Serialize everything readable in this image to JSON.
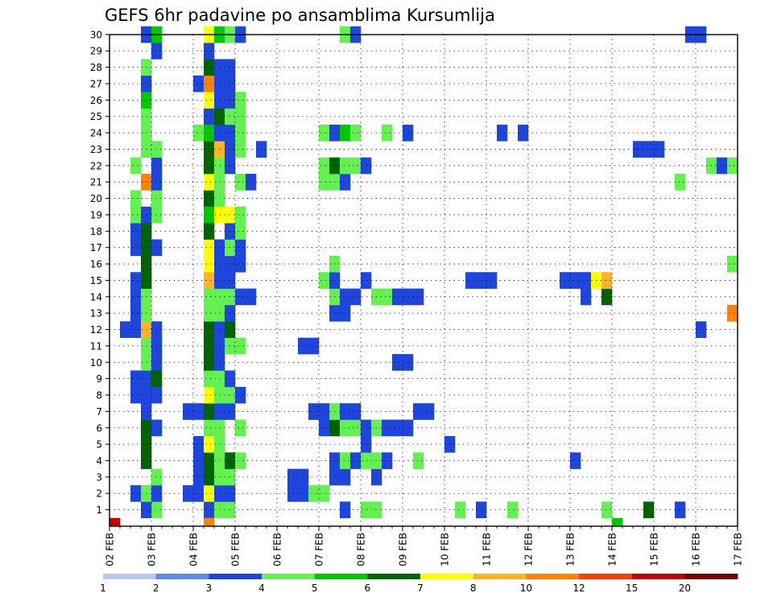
{
  "chart_data": {
    "type": "heatmap",
    "title": "GEFS 6hr padavine po ansamblima Kursumlija",
    "x_tick_labels": [
      "02 FEB",
      "03 FEB",
      "04 FEB",
      "05 FEB",
      "06 FEB",
      "07 FEB",
      "08 FEB",
      "09 FEB",
      "10 FEB",
      "11 FEB",
      "12 FEB",
      "13 FEB",
      "14 FEB",
      "15 FEB",
      "16 FEB",
      "17 FEB"
    ],
    "y_tick_labels": [
      "1",
      "2",
      "3",
      "4",
      "5",
      "6",
      "7",
      "8",
      "9",
      "10",
      "11",
      "12",
      "13",
      "14",
      "15",
      "16",
      "17",
      "18",
      "19",
      "20",
      "21",
      "22",
      "23",
      "24",
      "25",
      "26",
      "27",
      "28",
      "29",
      "30"
    ],
    "xlim_steps": [
      0,
      60
    ],
    "ylim_members": [
      0,
      30
    ],
    "grid": true,
    "legend": {
      "placement": "bottom",
      "labels": [
        "1",
        "2",
        "3",
        "4",
        "5",
        "6",
        "7",
        "8",
        "10",
        "12",
        "15",
        "20"
      ],
      "colors": [
        "#b4c8f0",
        "#5a8cf0",
        "#1e46dc",
        "#64f050",
        "#00c800",
        "#006400",
        "#ffff00",
        "#ffb428",
        "#ff8200",
        "#ff3c00",
        "#c80000",
        "#780000"
      ]
    },
    "cells": [
      [
        3,
        0,
        2
      ],
      [
        4,
        0,
        3
      ],
      [
        9,
        0,
        2
      ],
      [
        10,
        0,
        3
      ],
      [
        11,
        0,
        3
      ],
      [
        22,
        0,
        2
      ],
      [
        24,
        0,
        3
      ],
      [
        25,
        0,
        3
      ],
      [
        33,
        0,
        3
      ],
      [
        35,
        0,
        2
      ],
      [
        38,
        0,
        3
      ],
      [
        47,
        0,
        3
      ],
      [
        51,
        0,
        5
      ],
      [
        54,
        0,
        2
      ],
      [
        2,
        1,
        2
      ],
      [
        3,
        1,
        3
      ],
      [
        4,
        1,
        2
      ],
      [
        7,
        1,
        2
      ],
      [
        8,
        1,
        2
      ],
      [
        9,
        1,
        6
      ],
      [
        10,
        1,
        2
      ],
      [
        11,
        1,
        2
      ],
      [
        17,
        1,
        2
      ],
      [
        18,
        1,
        2
      ],
      [
        19,
        1,
        3
      ],
      [
        20,
        1,
        3
      ],
      [
        4,
        2,
        3
      ],
      [
        8,
        2,
        2
      ],
      [
        9,
        2,
        5
      ],
      [
        10,
        2,
        3
      ],
      [
        11,
        2,
        3
      ],
      [
        17,
        2,
        2
      ],
      [
        18,
        2,
        2
      ],
      [
        21,
        2,
        2
      ],
      [
        22,
        2,
        2
      ],
      [
        25,
        2,
        2
      ],
      [
        3,
        3,
        5
      ],
      [
        8,
        3,
        2
      ],
      [
        9,
        3,
        5
      ],
      [
        10,
        3,
        3
      ],
      [
        11,
        3,
        5
      ],
      [
        12,
        3,
        3
      ],
      [
        21,
        3,
        2
      ],
      [
        22,
        3,
        3
      ],
      [
        23,
        3,
        2
      ],
      [
        24,
        3,
        3
      ],
      [
        25,
        3,
        3
      ],
      [
        26,
        3,
        2
      ],
      [
        29,
        3,
        3
      ],
      [
        44,
        3,
        2
      ],
      [
        3,
        4,
        5
      ],
      [
        8,
        4,
        2
      ],
      [
        9,
        4,
        6
      ],
      [
        10,
        4,
        3
      ],
      [
        24,
        4,
        2
      ],
      [
        32,
        4,
        2
      ],
      [
        3,
        5,
        5
      ],
      [
        4,
        5,
        2
      ],
      [
        9,
        5,
        3
      ],
      [
        10,
        5,
        3
      ],
      [
        12,
        5,
        3
      ],
      [
        20,
        5,
        2
      ],
      [
        21,
        5,
        5
      ],
      [
        22,
        5,
        3
      ],
      [
        23,
        5,
        3
      ],
      [
        24,
        5,
        2
      ],
      [
        25,
        5,
        3
      ],
      [
        26,
        5,
        2
      ],
      [
        27,
        5,
        2
      ],
      [
        28,
        5,
        2
      ],
      [
        3,
        6,
        2
      ],
      [
        7,
        6,
        2
      ],
      [
        8,
        6,
        2
      ],
      [
        9,
        6,
        5
      ],
      [
        10,
        6,
        2
      ],
      [
        11,
        6,
        2
      ],
      [
        19,
        6,
        2
      ],
      [
        20,
        6,
        2
      ],
      [
        21,
        6,
        3
      ],
      [
        22,
        6,
        2
      ],
      [
        23,
        6,
        2
      ],
      [
        29,
        6,
        2
      ],
      [
        30,
        6,
        2
      ],
      [
        2,
        7,
        2
      ],
      [
        3,
        7,
        2
      ],
      [
        4,
        7,
        2
      ],
      [
        9,
        7,
        6
      ],
      [
        10,
        7,
        3
      ],
      [
        11,
        7,
        3
      ],
      [
        12,
        7,
        2
      ],
      [
        2,
        8,
        2
      ],
      [
        3,
        8,
        2
      ],
      [
        4,
        8,
        5
      ],
      [
        9,
        8,
        3
      ],
      [
        10,
        8,
        3
      ],
      [
        11,
        8,
        2
      ],
      [
        3,
        9,
        3
      ],
      [
        4,
        9,
        2
      ],
      [
        9,
        9,
        5
      ],
      [
        10,
        9,
        2
      ],
      [
        27,
        9,
        2
      ],
      [
        28,
        9,
        2
      ],
      [
        3,
        10,
        3
      ],
      [
        4,
        10,
        2
      ],
      [
        9,
        10,
        5
      ],
      [
        10,
        10,
        2
      ],
      [
        11,
        10,
        3
      ],
      [
        12,
        10,
        3
      ],
      [
        18,
        10,
        2
      ],
      [
        19,
        10,
        2
      ],
      [
        1,
        11,
        2
      ],
      [
        2,
        11,
        2
      ],
      [
        3,
        11,
        7
      ],
      [
        4,
        11,
        2
      ],
      [
        9,
        11,
        5
      ],
      [
        10,
        11,
        2
      ],
      [
        11,
        11,
        5
      ],
      [
        56,
        11,
        2
      ],
      [
        2,
        12,
        2
      ],
      [
        3,
        12,
        3
      ],
      [
        9,
        12,
        3
      ],
      [
        10,
        12,
        3
      ],
      [
        11,
        12,
        2
      ],
      [
        21,
        12,
        2
      ],
      [
        22,
        12,
        2
      ],
      [
        59,
        12,
        8
      ],
      [
        60,
        12,
        2
      ],
      [
        2,
        13,
        2
      ],
      [
        3,
        13,
        3
      ],
      [
        9,
        13,
        3
      ],
      [
        10,
        13,
        3
      ],
      [
        11,
        13,
        3
      ],
      [
        12,
        13,
        2
      ],
      [
        13,
        13,
        2
      ],
      [
        21,
        13,
        3
      ],
      [
        22,
        13,
        2
      ],
      [
        23,
        13,
        2
      ],
      [
        25,
        13,
        3
      ],
      [
        26,
        13,
        3
      ],
      [
        27,
        13,
        2
      ],
      [
        28,
        13,
        2
      ],
      [
        29,
        13,
        2
      ],
      [
        45,
        13,
        2
      ],
      [
        47,
        13,
        5
      ],
      [
        2,
        14,
        2
      ],
      [
        3,
        14,
        5
      ],
      [
        9,
        14,
        7
      ],
      [
        10,
        14,
        2
      ],
      [
        11,
        14,
        2
      ],
      [
        20,
        14,
        3
      ],
      [
        21,
        14,
        2
      ],
      [
        24,
        14,
        2
      ],
      [
        34,
        14,
        2
      ],
      [
        35,
        14,
        2
      ],
      [
        36,
        14,
        2
      ],
      [
        43,
        14,
        2
      ],
      [
        44,
        14,
        2
      ],
      [
        45,
        14,
        2
      ],
      [
        46,
        14,
        6
      ],
      [
        47,
        14,
        7
      ],
      [
        3,
        15,
        5
      ],
      [
        9,
        15,
        6
      ],
      [
        10,
        15,
        2
      ],
      [
        11,
        15,
        2
      ],
      [
        12,
        15,
        2
      ],
      [
        21,
        15,
        3
      ],
      [
        59,
        15,
        3
      ],
      [
        2,
        16,
        2
      ],
      [
        3,
        16,
        5
      ],
      [
        4,
        16,
        2
      ],
      [
        9,
        16,
        6
      ],
      [
        10,
        16,
        2
      ],
      [
        11,
        16,
        3
      ],
      [
        12,
        16,
        2
      ],
      [
        2,
        17,
        2
      ],
      [
        3,
        17,
        5
      ],
      [
        9,
        17,
        5
      ],
      [
        11,
        17,
        2
      ],
      [
        12,
        17,
        3
      ],
      [
        2,
        18,
        3
      ],
      [
        3,
        18,
        2
      ],
      [
        4,
        18,
        3
      ],
      [
        9,
        18,
        4
      ],
      [
        10,
        18,
        6
      ],
      [
        11,
        18,
        6
      ],
      [
        12,
        18,
        3
      ],
      [
        2,
        19,
        3
      ],
      [
        4,
        19,
        3
      ],
      [
        9,
        19,
        5
      ],
      [
        10,
        19,
        3
      ],
      [
        3,
        20,
        8
      ],
      [
        4,
        20,
        2
      ],
      [
        9,
        20,
        6
      ],
      [
        10,
        20,
        3
      ],
      [
        12,
        20,
        3
      ],
      [
        13,
        20,
        2
      ],
      [
        20,
        20,
        3
      ],
      [
        21,
        20,
        3
      ],
      [
        22,
        20,
        2
      ],
      [
        54,
        20,
        3
      ],
      [
        2,
        21,
        3
      ],
      [
        4,
        21,
        2
      ],
      [
        9,
        21,
        5
      ],
      [
        10,
        21,
        3
      ],
      [
        11,
        21,
        2
      ],
      [
        20,
        21,
        3
      ],
      [
        21,
        21,
        5
      ],
      [
        22,
        21,
        3
      ],
      [
        23,
        21,
        3
      ],
      [
        24,
        21,
        2
      ],
      [
        57,
        21,
        3
      ],
      [
        58,
        21,
        2
      ],
      [
        59,
        21,
        3
      ],
      [
        3,
        22,
        3
      ],
      [
        4,
        22,
        3
      ],
      [
        9,
        22,
        5
      ],
      [
        10,
        22,
        7
      ],
      [
        11,
        22,
        2
      ],
      [
        12,
        22,
        3
      ],
      [
        14,
        22,
        2
      ],
      [
        50,
        22,
        2
      ],
      [
        51,
        22,
        2
      ],
      [
        52,
        22,
        2
      ],
      [
        3,
        23,
        3
      ],
      [
        8,
        23,
        3
      ],
      [
        9,
        23,
        4
      ],
      [
        10,
        23,
        2
      ],
      [
        11,
        23,
        2
      ],
      [
        12,
        23,
        3
      ],
      [
        20,
        23,
        3
      ],
      [
        21,
        23,
        2
      ],
      [
        22,
        23,
        4
      ],
      [
        23,
        23,
        3
      ],
      [
        26,
        23,
        3
      ],
      [
        28,
        23,
        2
      ],
      [
        37,
        23,
        2
      ],
      [
        39,
        23,
        2
      ],
      [
        3,
        24,
        3
      ],
      [
        9,
        24,
        2
      ],
      [
        10,
        24,
        5
      ],
      [
        11,
        24,
        3
      ],
      [
        12,
        24,
        3
      ],
      [
        3,
        25,
        4
      ],
      [
        9,
        25,
        6
      ],
      [
        10,
        25,
        2
      ],
      [
        11,
        25,
        2
      ],
      [
        12,
        25,
        3
      ],
      [
        3,
        26,
        2
      ],
      [
        8,
        26,
        2
      ],
      [
        9,
        26,
        8
      ],
      [
        10,
        26,
        2
      ],
      [
        11,
        26,
        2
      ],
      [
        60,
        26,
        3
      ],
      [
        3,
        27,
        3
      ],
      [
        9,
        27,
        5
      ],
      [
        10,
        27,
        2
      ],
      [
        11,
        27,
        2
      ],
      [
        4,
        28,
        2
      ],
      [
        9,
        28,
        2
      ],
      [
        3,
        29,
        2
      ],
      [
        4,
        29,
        4
      ],
      [
        9,
        29,
        6
      ],
      [
        10,
        29,
        4
      ],
      [
        11,
        29,
        3
      ],
      [
        12,
        29,
        2
      ],
      [
        22,
        29,
        3
      ],
      [
        23,
        29,
        2
      ],
      [
        55,
        29,
        2
      ],
      [
        56,
        29,
        2
      ],
      [
        0,
        -1,
        10
      ],
      [
        9,
        -1,
        8
      ],
      [
        48,
        -1,
        4
      ]
    ]
  }
}
